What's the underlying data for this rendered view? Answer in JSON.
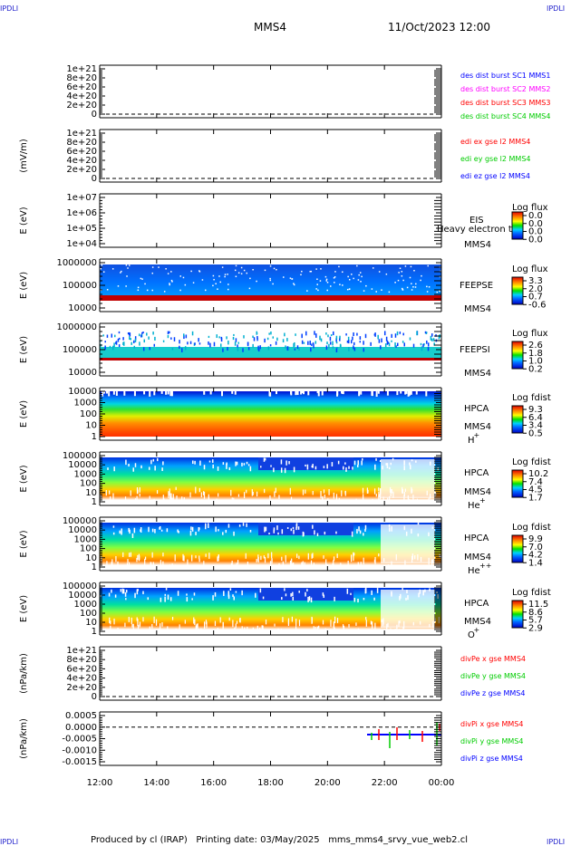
{
  "header": {
    "corner": "IPDLI",
    "spacecraft": "MMS4",
    "datetime": "11/Oct/2023 12:00"
  },
  "footer": {
    "text": "Produced by cl (IRAP)   Printing date: 03/May/2025   mms_mms4_srvy_vue_web2.cl"
  },
  "colors": {
    "red": "#ff0000",
    "green": "#00cc00",
    "blue": "#0000ff",
    "magenta": "#ff00ff",
    "grid_dash": "#000000"
  },
  "chart_data": {
    "type": "multi-panel time series / spectrogram",
    "x_ticks": [
      "12:00",
      "14:00",
      "16:00",
      "18:00",
      "20:00",
      "22:00",
      "00:00"
    ],
    "panels": [
      {
        "id": "des-dist",
        "type": "line",
        "ylabel": "",
        "yticks": [
          "1e+21",
          "8e+20",
          "6e+20",
          "4e+20",
          "2e+20",
          "0"
        ],
        "legend": [
          {
            "text": "des dist burst SC1 MMS1",
            "color": "blue"
          },
          {
            "text": "des dist burst SC2 MMS2",
            "color": "magenta"
          },
          {
            "text": "des dist burst SC3 MMS3",
            "color": "red"
          },
          {
            "text": "des dist burst SC4 MMS4",
            "color": "green"
          }
        ]
      },
      {
        "id": "edi",
        "type": "line",
        "ylabel": "(mV/m)",
        "yticks": [
          "1e+21",
          "8e+20",
          "6e+20",
          "4e+20",
          "2e+20",
          "0"
        ],
        "legend": [
          {
            "text": "edi ex gse l2 MMS4",
            "color": "red"
          },
          {
            "text": "edi ey gse l2 MMS4",
            "color": "green"
          },
          {
            "text": "edi ez gse l2 MMS4",
            "color": "blue"
          }
        ]
      },
      {
        "id": "eis",
        "type": "heatmap",
        "ylabel": "E (eV)",
        "yticks": [
          "1e+07",
          "1e+06",
          "1e+05",
          "1e+04"
        ],
        "side": [
          "EIS",
          "MMS4"
        ],
        "overlay": "Heavy electron to",
        "cbar_title": "Log flux",
        "cbar_ticks": [
          "0.0",
          "0.0",
          "0.0",
          "0.0"
        ]
      },
      {
        "id": "feepse",
        "type": "heatmap",
        "ylabel": "E (eV)",
        "yticks": [
          "1000000",
          "100000",
          "10000"
        ],
        "side": [
          "FEEPSE",
          "MMS4"
        ],
        "cbar_title": "Log flux",
        "cbar_ticks": [
          "3.3",
          "2.0",
          "0.7",
          "-0.6"
        ]
      },
      {
        "id": "feepsi",
        "type": "heatmap",
        "ylabel": "E (eV)",
        "yticks": [
          "1000000",
          "100000",
          "10000"
        ],
        "side": [
          "FEEPSI",
          "MMS4"
        ],
        "cbar_title": "Log flux",
        "cbar_ticks": [
          "2.6",
          "1.8",
          "1.0",
          "0.2"
        ]
      },
      {
        "id": "hpca-h",
        "type": "heatmap",
        "ylabel": "E (eV)",
        "yticks": [
          "10000",
          "1000",
          "100",
          "10",
          "1"
        ],
        "side": [
          "HPCA",
          "MMS4",
          "H",
          "+"
        ],
        "cbar_title": "Log fdist",
        "cbar_ticks": [
          "9.3",
          "6.4",
          "3.4",
          "0.5"
        ]
      },
      {
        "id": "hpca-he",
        "type": "heatmap",
        "ylabel": "E (eV)",
        "yticks": [
          "100000",
          "10000",
          "1000",
          "100",
          "10",
          "1"
        ],
        "side": [
          "HPCA",
          "MMS4",
          "He",
          "+"
        ],
        "cbar_title": "Log fdist",
        "cbar_ticks": [
          "10.2",
          "7.4",
          "4.5",
          "1.7"
        ]
      },
      {
        "id": "hpca-hepp",
        "type": "heatmap",
        "ylabel": "E (eV)",
        "yticks": [
          "100000",
          "10000",
          "1000",
          "100",
          "10",
          "1"
        ],
        "side": [
          "HPCA",
          "MMS4",
          "He",
          "++"
        ],
        "cbar_title": "Log fdist",
        "cbar_ticks": [
          "9.9",
          "7.0",
          "4.2",
          "1.4"
        ]
      },
      {
        "id": "hpca-o",
        "type": "heatmap",
        "ylabel": "E (eV)",
        "yticks": [
          "100000",
          "10000",
          "1000",
          "100",
          "10",
          "1"
        ],
        "side": [
          "HPCA",
          "MMS4",
          "O",
          "+"
        ],
        "cbar_title": "Log fdist",
        "cbar_ticks": [
          "11.5",
          "8.6",
          "5.7",
          "2.9"
        ]
      },
      {
        "id": "divpe",
        "type": "line",
        "ylabel": "(nPa/km)",
        "yticks": [
          "1e+21",
          "8e+20",
          "6e+20",
          "4e+20",
          "2e+20",
          "0"
        ],
        "legend": [
          {
            "text": "divPe x gse MMS4",
            "color": "red"
          },
          {
            "text": "divPe y gse MMS4",
            "color": "green"
          },
          {
            "text": "divPe z gse MMS4",
            "color": "blue"
          }
        ]
      },
      {
        "id": "divpi",
        "type": "line",
        "ylabel": "(nPa/km)",
        "yticks": [
          "0.0005",
          "0.0000",
          "-0.0005",
          "-0.0010",
          "-0.0015"
        ],
        "legend": [
          {
            "text": "divPi x gse MMS4",
            "color": "red"
          },
          {
            "text": "divPi y gse MMS4",
            "color": "green"
          },
          {
            "text": "divPi z gse MMS4",
            "color": "blue"
          }
        ]
      }
    ]
  }
}
